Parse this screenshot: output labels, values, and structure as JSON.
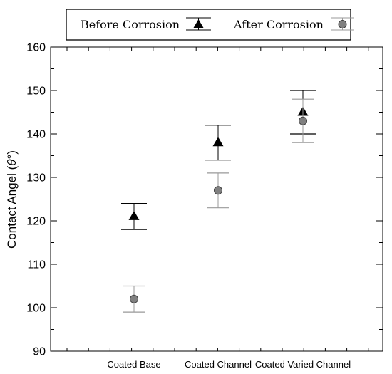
{
  "chart_data": {
    "type": "scatter",
    "title": "",
    "xlabel": "",
    "ylabel": "Contact Angel (θ°)",
    "ylabel_parts": [
      "Contact Angel (",
      "θ",
      "°)"
    ],
    "categories": [
      "Coated Base",
      "Coated Channel",
      "Coated Varied Channel"
    ],
    "ylim": [
      90,
      160
    ],
    "yticks": [
      "90",
      "100",
      "110",
      "120",
      "130",
      "140",
      "150",
      "160"
    ],
    "grid": false,
    "legend_position": "top",
    "series": [
      {
        "name": "Before Corrosion",
        "marker": "triangle",
        "color": "#000000",
        "errorbar_color": "#000000",
        "values": [
          121,
          138,
          145
        ],
        "error_low": [
          118,
          134,
          140
        ],
        "error_high": [
          124,
          142,
          150
        ]
      },
      {
        "name": "After Corrosion",
        "marker": "circle",
        "color": "#808080",
        "errorbar_color": "#999999",
        "values": [
          102,
          127,
          143
        ],
        "error_low": [
          99,
          123,
          138
        ],
        "error_high": [
          105,
          131,
          148
        ]
      }
    ]
  }
}
